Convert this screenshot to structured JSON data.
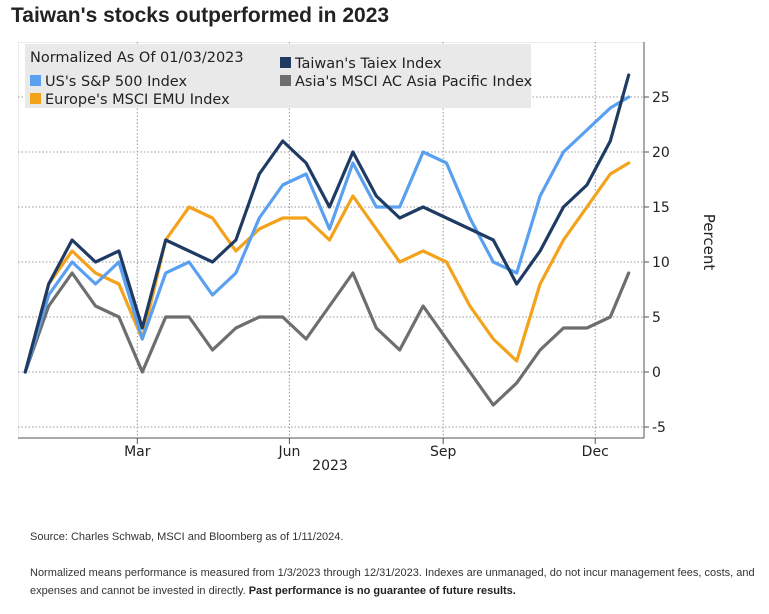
{
  "title": "Taiwan's stocks outperformed in 2023",
  "footnote_source": "Source: Charles Schwab, MSCI and Bloomberg as of 1/11/2024.",
  "footnote_normalized": "Normalized means performance is measured from 1/3/2023 through 12/31/2023. Indexes are unmanaged, do not incur management fees, costs, and expenses and cannot be invested in directly.",
  "footnote_bold": "Past performance is no guarantee of future results.",
  "colors": {
    "taiwan": "#1f3b63",
    "sp500": "#5aa0f0",
    "msci_asia": "#6e6e6e",
    "europe": "#f3a21b",
    "plot_bg": "#ffffff",
    "grid": "#9a9a9a"
  },
  "chart_data": {
    "type": "line",
    "legend_header": "Normalized As Of 01/03/2023",
    "legend_position": "top-left",
    "xlabel": "2023",
    "ylabel": "Percent",
    "ylim": [
      -6,
      30
    ],
    "yticks": [
      -5,
      0,
      5,
      10,
      15,
      20,
      25
    ],
    "grid": true,
    "x_ticks": [
      {
        "label": "Mar",
        "day": 69
      },
      {
        "label": "Jun",
        "day": 160
      },
      {
        "label": "Sep",
        "day": 252
      },
      {
        "label": "Dec",
        "day": 343
      }
    ],
    "x": [
      2,
      16,
      30,
      44,
      58,
      72,
      86,
      100,
      114,
      128,
      142,
      156,
      170,
      184,
      198,
      212,
      226,
      240,
      254,
      268,
      282,
      296,
      310,
      324,
      338,
      352,
      363
    ],
    "series": [
      {
        "name": "Taiwan's Taiex Index",
        "key": "taiwan",
        "values": [
          0,
          8,
          12,
          10,
          11,
          4,
          12,
          11,
          10,
          12,
          18,
          21,
          19,
          15,
          20,
          16,
          14,
          15,
          14,
          13,
          12,
          8,
          11,
          15,
          17,
          21,
          27
        ]
      },
      {
        "name": "US's S&P 500 Index",
        "key": "sp500",
        "values": [
          0,
          7,
          10,
          8,
          10,
          3,
          9,
          10,
          7,
          9,
          14,
          17,
          18,
          13,
          19,
          15,
          15,
          20,
          19,
          14,
          10,
          9,
          16,
          20,
          22,
          24,
          25
        ]
      },
      {
        "name": "Asia's MSCI AC Asia Pacific Index",
        "key": "msci_asia",
        "values": [
          0,
          6,
          9,
          6,
          5,
          0,
          5,
          5,
          2,
          4,
          5,
          5,
          3,
          6,
          9,
          4,
          2,
          6,
          3,
          0,
          -3,
          -1,
          2,
          4,
          4,
          5,
          9
        ]
      },
      {
        "name": "Europe's MSCI EMU Index",
        "key": "europe",
        "values": [
          0,
          8,
          11,
          9,
          8,
          3,
          12,
          15,
          14,
          11,
          13,
          14,
          14,
          12,
          16,
          13,
          10,
          11,
          10,
          6,
          3,
          1,
          8,
          12,
          15,
          18,
          19
        ]
      }
    ]
  }
}
